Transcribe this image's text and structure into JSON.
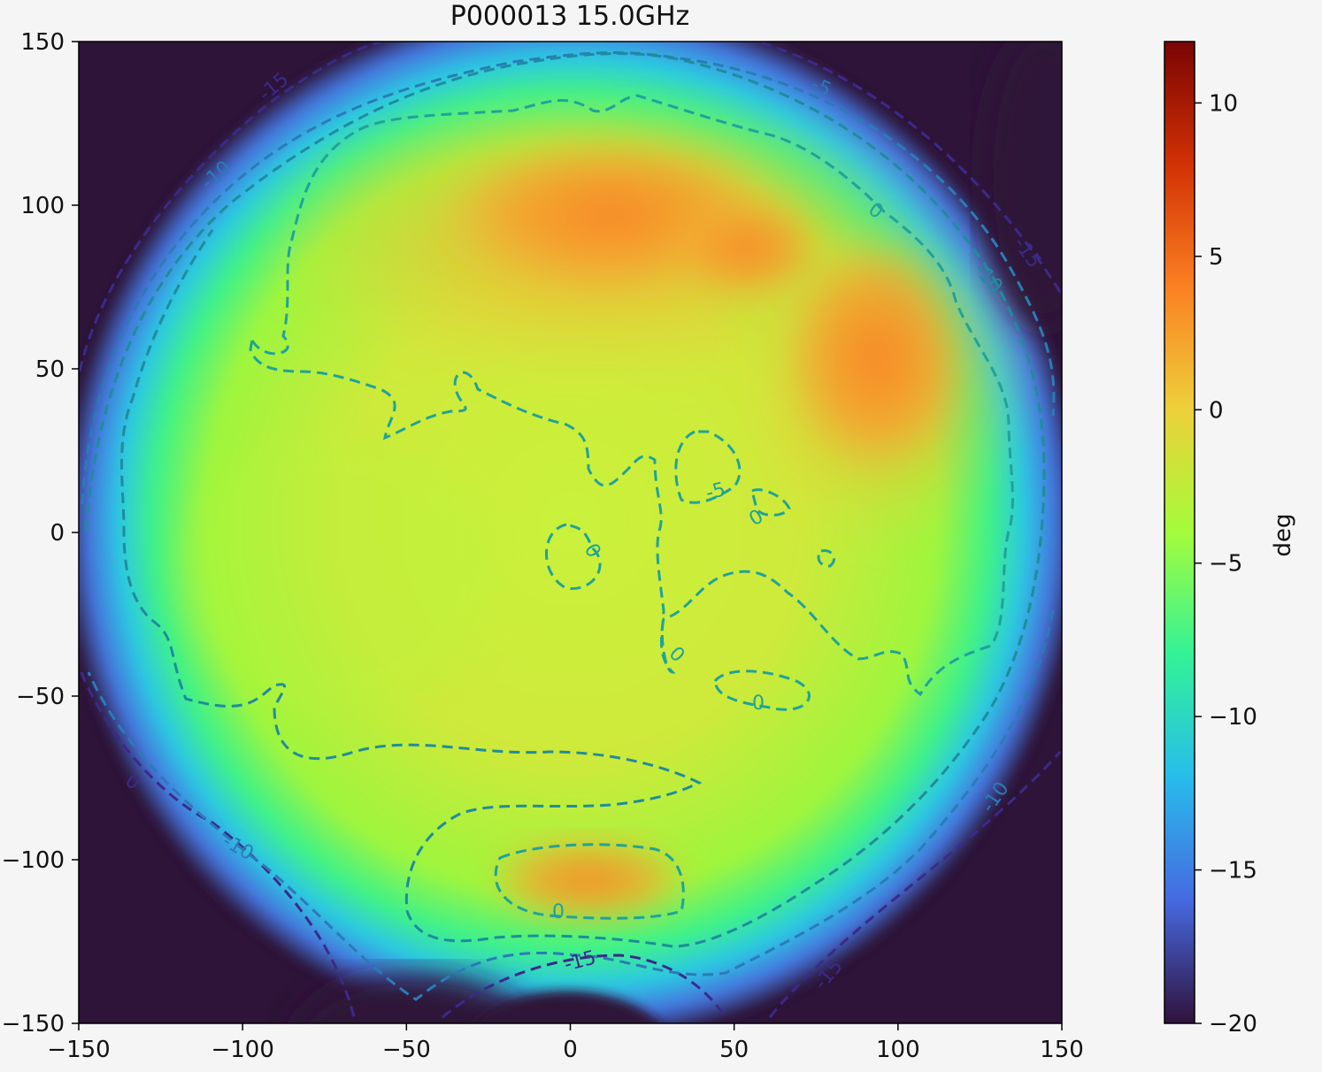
{
  "chart_data": {
    "type": "heatmap",
    "title": "P000013 15.0GHz",
    "xlabel": "",
    "ylabel": "",
    "xlim": [
      -150,
      150
    ],
    "ylim": [
      -150,
      150
    ],
    "x_ticks": [
      -150,
      -100,
      -50,
      0,
      50,
      100,
      150
    ],
    "y_ticks": [
      150,
      100,
      50,
      0,
      -50,
      -100,
      -150
    ],
    "colorbar": {
      "label": "deg",
      "range": [
        -20,
        12
      ],
      "ticks": [
        10,
        5,
        0,
        -5,
        -10,
        -15,
        -20
      ],
      "colormap": "turbo",
      "colors": [
        "#30123b",
        "#4669e0",
        "#28bceb",
        "#32f298",
        "#a4fc3b",
        "#edd03a",
        "#fb8022",
        "#d23105",
        "#7a0403"
      ]
    },
    "contour_levels": [
      -15,
      -10,
      -5,
      0
    ],
    "contour_style": "dashed",
    "contour_labels": [
      "-15",
      "-10",
      "-5",
      "0",
      "-15",
      "-10",
      "-5",
      "0",
      "0",
      "0",
      "0",
      "0",
      "0",
      "-10",
      "-15",
      "-10",
      "-15",
      "0",
      "-15"
    ],
    "features": {
      "background_below_range": "#2d1438",
      "peak_regions": [
        {
          "x": 15,
          "y": 100,
          "value": 4
        },
        {
          "x": 95,
          "y": 60,
          "value": 3.5
        },
        {
          "x": 15,
          "y": -105,
          "value": 2
        },
        {
          "x": 55,
          "y": 85,
          "value": 3
        }
      ],
      "center_value": -2
    }
  }
}
